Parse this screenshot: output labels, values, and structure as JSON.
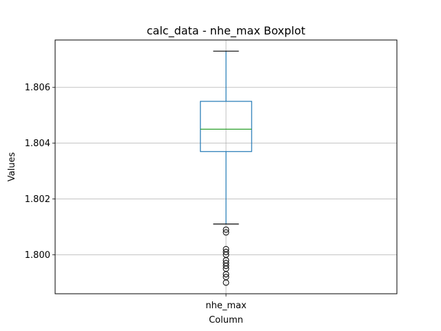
{
  "chart_data": {
    "type": "boxplot",
    "title": "calc_data - nhe_max Boxplot",
    "xlabel": "Column",
    "ylabel": "Values",
    "categories": [
      "nhe_max"
    ],
    "ylim": [
      1.7986,
      1.8077
    ],
    "yticks": [
      1.8,
      1.802,
      1.804,
      1.806
    ],
    "ytick_labels": [
      "1.800",
      "1.802",
      "1.804",
      "1.806"
    ],
    "grid": true,
    "boxes": [
      {
        "name": "nhe_max",
        "whisker_low": 1.8011,
        "q1": 1.8037,
        "median": 1.8045,
        "q3": 1.8055,
        "whisker_high": 1.8073,
        "outliers": [
          1.8009,
          1.8008,
          1.8002,
          1.8001,
          1.8,
          1.7998,
          1.7997,
          1.7996,
          1.7995,
          1.7993,
          1.7992,
          1.799
        ]
      }
    ],
    "colors": {
      "box": "#1f77b4",
      "median": "#2ca02c",
      "whisker_cap": "#000000",
      "outlier": "#000000",
      "grid": "#b0b0b0"
    }
  }
}
